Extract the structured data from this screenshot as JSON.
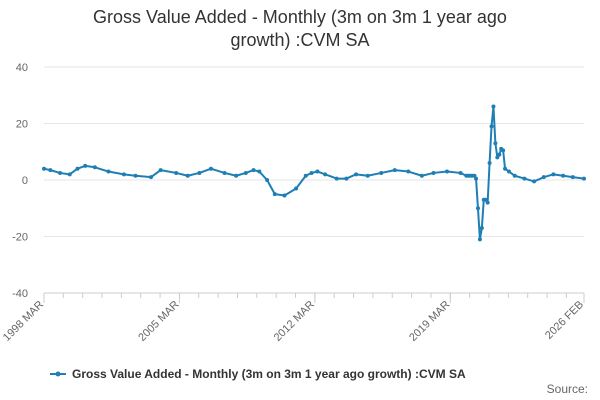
{
  "chart_data": {
    "type": "line",
    "title_line1": "Gross Value Added - Monthly (3m on 3m 1 year ago",
    "title_line2": "growth) :CVM SA",
    "xlabel": "",
    "ylabel": "",
    "ylim": [
      -40,
      40
    ],
    "yticks": [
      "40",
      "20",
      "0",
      "-20",
      "-40"
    ],
    "x_tick_labels": [
      "1998 MAR",
      "2005 MAR",
      "2012 MAR",
      "2019 MAR",
      "2026 FEB"
    ],
    "x_range": [
      1998.17,
      2026.08
    ],
    "grid": true,
    "legend_position": "bottom",
    "source_label": "Source:",
    "series": [
      {
        "name": "Gross Value Added - Monthly (3m on 3m 1 year ago growth) :CVM SA",
        "color": "#1f7fb4",
        "x": [
          1998.17,
          1998.5,
          1999.0,
          1999.5,
          1999.9,
          2000.3,
          2000.8,
          2001.5,
          2002.3,
          2002.9,
          2003.7,
          2004.2,
          2005.0,
          2005.6,
          2006.2,
          2006.8,
          2007.5,
          2008.1,
          2008.6,
          2009.0,
          2009.3,
          2009.7,
          2010.1,
          2010.6,
          2011.2,
          2011.7,
          2012.0,
          2012.3,
          2012.7,
          2013.3,
          2013.8,
          2014.3,
          2014.9,
          2015.6,
          2016.3,
          2017.0,
          2017.7,
          2018.3,
          2019.0,
          2019.7,
          2020.0,
          2020.1,
          2020.2,
          2020.3,
          2020.42,
          2020.5,
          2020.6,
          2020.7,
          2020.8,
          2020.9,
          2021.0,
          2021.1,
          2021.2,
          2021.3,
          2021.4,
          2021.5,
          2021.6,
          2021.7,
          2021.8,
          2021.9,
          2022.0,
          2022.2,
          2022.5,
          2023.0,
          2023.5,
          2024.0,
          2024.5,
          2025.0,
          2025.5,
          2026.08
        ],
        "values": [
          4,
          3.5,
          2.5,
          2,
          4,
          5,
          4.5,
          3,
          2,
          1.5,
          1,
          3.5,
          2.5,
          1.5,
          2.5,
          4,
          2.5,
          1.5,
          2.5,
          3.5,
          3,
          0,
          -5,
          -5.5,
          -3,
          1.5,
          2.5,
          3,
          2,
          0.5,
          0.5,
          2,
          1.5,
          2.5,
          3.5,
          3,
          1.5,
          2.5,
          3,
          2.5,
          1.5,
          1.5,
          1.5,
          1.5,
          1.5,
          0.5,
          -10,
          -21,
          -17,
          -7,
          -7,
          -8,
          6,
          19,
          26,
          13,
          8,
          9,
          11,
          10.5,
          4,
          3,
          1.5,
          0.5,
          -0.5,
          1,
          2,
          1.5,
          1,
          0.5
        ]
      }
    ]
  }
}
